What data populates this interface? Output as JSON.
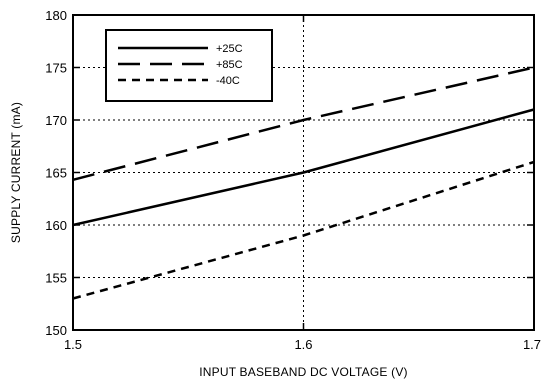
{
  "chart_data": {
    "type": "line",
    "xlabel": "INPUT BASEBAND DC VOLTAGE (V)",
    "ylabel": "SUPPLY CURRENT (mA)",
    "xlim": [
      1.5,
      1.7
    ],
    "ylim": [
      150,
      180
    ],
    "x_ticks": [
      "1.5",
      "1.6",
      "1.7"
    ],
    "y_ticks": [
      "150",
      "155",
      "160",
      "165",
      "170",
      "175",
      "180"
    ],
    "grid": true,
    "legend_position": "top-left",
    "series": [
      {
        "name": "+25C",
        "style": "solid",
        "x": [
          1.5,
          1.6,
          1.7
        ],
        "values": [
          160,
          165,
          171
        ]
      },
      {
        "name": "+85C",
        "style": "dashed",
        "x": [
          1.5,
          1.6,
          1.7
        ],
        "values": [
          164.3,
          170,
          175
        ]
      },
      {
        "name": "-40C",
        "style": "dotted",
        "x": [
          1.5,
          1.6,
          1.7
        ],
        "values": [
          153,
          159,
          166
        ]
      }
    ]
  }
}
